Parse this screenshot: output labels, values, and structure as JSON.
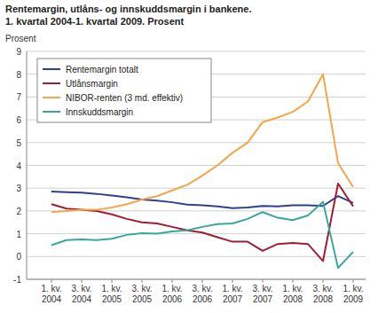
{
  "chart_data": {
    "type": "line",
    "title": "Rentemargin, utlåns- og innskuddsmargin i bankene.",
    "subtitle": "1. kvartal 2004-1. kvartal 2009. Prosent",
    "y_label": "Prosent",
    "categories": [
      "1. kv. 2004",
      null,
      "3. kv. 2004",
      null,
      "1. kv. 2005",
      null,
      "3. kv. 2005",
      null,
      "1. kv. 2006",
      null,
      "3. kv. 2006",
      null,
      "1. kv. 2007",
      null,
      "3. kv. 2007",
      null,
      "1. kv. 2008",
      null,
      "3. kv. 2008",
      null,
      "1. kv. 2009"
    ],
    "series": [
      {
        "name": "Rentemargin totalt",
        "color": "#2e3f8f",
        "values": [
          2.85,
          2.82,
          2.8,
          2.75,
          2.68,
          2.6,
          2.5,
          2.45,
          2.38,
          2.28,
          2.25,
          2.2,
          2.12,
          2.15,
          2.22,
          2.2,
          2.25,
          2.25,
          2.22,
          2.65,
          2.35
        ]
      },
      {
        "name": "Utlånsmargin",
        "color": "#a11d33",
        "values": [
          2.3,
          2.1,
          2.05,
          2.0,
          1.85,
          1.65,
          1.5,
          1.45,
          1.3,
          1.15,
          1.05,
          0.85,
          0.65,
          0.65,
          0.25,
          0.55,
          0.6,
          0.55,
          -0.2,
          3.2,
          2.2
        ]
      },
      {
        "name": "NIBOR-renten (3 md. effektiv)",
        "color": "#f5a54a",
        "values": [
          1.95,
          2.0,
          2.05,
          2.05,
          2.15,
          2.3,
          2.5,
          2.65,
          2.9,
          3.15,
          3.55,
          4.0,
          4.55,
          5.0,
          5.9,
          6.1,
          6.35,
          6.8,
          8.0,
          4.1,
          3.05
        ]
      },
      {
        "name": "Innskuddsmargin",
        "color": "#35a89b",
        "values": [
          0.5,
          0.72,
          0.75,
          0.72,
          0.78,
          0.95,
          1.02,
          1.0,
          1.1,
          1.15,
          1.3,
          1.42,
          1.45,
          1.65,
          1.95,
          1.7,
          1.6,
          1.8,
          2.4,
          -0.5,
          0.2
        ]
      }
    ],
    "ylim": [
      -1,
      9
    ],
    "yticks": [
      -1,
      0,
      1,
      2,
      3,
      4,
      5,
      6,
      7,
      8,
      9
    ],
    "grid": true,
    "legend": "upper-left"
  }
}
